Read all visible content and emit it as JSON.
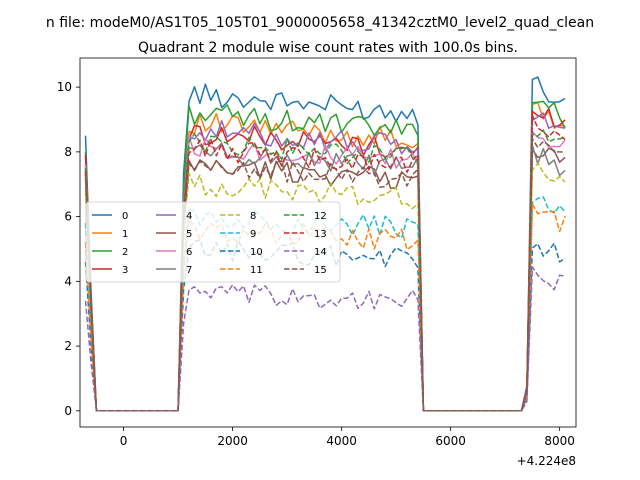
{
  "window": {
    "suptitle": "n file: modeM0/AS1T05_105T01_9000005658_41342cztM0_level2_quad_clean",
    "title": "Quadrant 2 module wise count rates with 100.0s bins."
  },
  "chart_data": {
    "type": "line",
    "title": "Quadrant 2 module wise count rates with 100.0s bins.",
    "suptitle": "n file: modeM0/AS1T05_105T01_9000005658_41342cztM0_level2_quad_clean",
    "xlabel": "",
    "ylabel": "",
    "x_offset_label": "+4.224e8",
    "xlim": [
      -800,
      8300
    ],
    "ylim": [
      -0.5,
      10.9
    ],
    "xticks": [
      0,
      2000,
      4000,
      6000,
      8000
    ],
    "yticks": [
      0,
      2,
      4,
      6,
      8,
      10
    ],
    "grid": false,
    "legend": {
      "placement": "center-left",
      "columns": 4
    },
    "x": [
      -700,
      -600,
      -500,
      1000,
      1100,
      1200,
      1300,
      1400,
      1500,
      1600,
      1700,
      1800,
      1900,
      2000,
      2100,
      2200,
      2300,
      2400,
      2500,
      2600,
      2700,
      2800,
      2900,
      3000,
      3100,
      3200,
      3300,
      3400,
      3500,
      3600,
      3700,
      3800,
      3900,
      4000,
      4100,
      4200,
      4300,
      4400,
      4500,
      4600,
      4700,
      4800,
      4900,
      5000,
      5100,
      5200,
      5300,
      5400,
      5500,
      5600,
      7300,
      7400,
      7500,
      7600,
      7700,
      7800,
      7900,
      8000,
      8100
    ],
    "series": [
      {
        "name": "0",
        "color": "#1f77b4",
        "dashed": false,
        "gap": [
          0.0,
          0.0,
          0.0
        ],
        "plateau": 9.8,
        "edge": 8.5,
        "second": 10.2
      },
      {
        "name": "1",
        "color": "#ff7f0e",
        "dashed": false,
        "gap": [
          0.0,
          0.0,
          0.0
        ],
        "plateau": 8.9,
        "edge": 7.9,
        "second": 9.4
      },
      {
        "name": "2",
        "color": "#2ca02c",
        "dashed": false,
        "gap": [
          0.0,
          0.0,
          0.0
        ],
        "plateau": 9.2,
        "edge": 8.0,
        "second": 9.7
      },
      {
        "name": "3",
        "color": "#d62728",
        "dashed": false,
        "gap": [
          0.0,
          0.0,
          0.0
        ],
        "plateau": 8.6,
        "edge": 7.9,
        "second": 9.5
      },
      {
        "name": "4",
        "color": "#9467bd",
        "dashed": false,
        "gap": [
          0.0,
          0.0,
          0.0
        ],
        "plateau": 8.7,
        "edge": 7.6,
        "second": 9.2
      },
      {
        "name": "5",
        "color": "#8c564b",
        "dashed": false,
        "gap": [
          0.0,
          0.0,
          0.0
        ],
        "plateau": 7.6,
        "edge": 7.4,
        "second": 8.2
      },
      {
        "name": "6",
        "color": "#e377c2",
        "dashed": false,
        "gap": [
          0.0,
          0.0,
          0.0
        ],
        "plateau": 8.2,
        "edge": 7.6,
        "second": 8.7
      },
      {
        "name": "7",
        "color": "#7f7f7f",
        "dashed": false,
        "gap": [
          0.0,
          0.0,
          0.0
        ],
        "plateau": 8.0,
        "edge": 7.3,
        "second": 8.0
      },
      {
        "name": "8",
        "color": "#bcbd22",
        "dashed": true,
        "gap": [
          0.0,
          0.0,
          0.0
        ],
        "plateau": 7.0,
        "edge": 6.8,
        "second": 7.6
      },
      {
        "name": "9",
        "color": "#17becf",
        "dashed": true,
        "gap": [
          0.0,
          0.0,
          0.0
        ],
        "plateau": 6.0,
        "edge": 5.8,
        "second": 6.5
      },
      {
        "name": "10",
        "color": "#1f77b4",
        "dashed": true,
        "gap": [
          0.0,
          0.0,
          0.0
        ],
        "plateau": 5.0,
        "edge": 4.6,
        "second": 5.2
      },
      {
        "name": "11",
        "color": "#ff7f0e",
        "dashed": true,
        "gap": [
          0.0,
          0.0,
          0.0
        ],
        "plateau": 5.6,
        "edge": 5.2,
        "second": 6.2
      },
      {
        "name": "12",
        "color": "#2ca02c",
        "dashed": true,
        "gap": [
          0.0,
          0.0,
          0.0
        ],
        "plateau": 8.3,
        "edge": 7.5,
        "second": 8.8
      },
      {
        "name": "13",
        "color": "#d62728",
        "dashed": true,
        "gap": [
          0.0,
          0.0,
          0.0
        ],
        "plateau": 8.1,
        "edge": 7.4,
        "second": 8.9
      },
      {
        "name": "14",
        "color": "#9467bd",
        "dashed": true,
        "gap": [
          0.0,
          0.0,
          0.0
        ],
        "plateau": 3.6,
        "edge": 3.4,
        "second": 4.2
      },
      {
        "name": "15",
        "color": "#8c564b",
        "dashed": true,
        "gap": [
          0.0,
          0.0,
          0.0
        ],
        "plateau": 7.6,
        "edge": 7.2,
        "second": 8.3
      }
    ]
  }
}
